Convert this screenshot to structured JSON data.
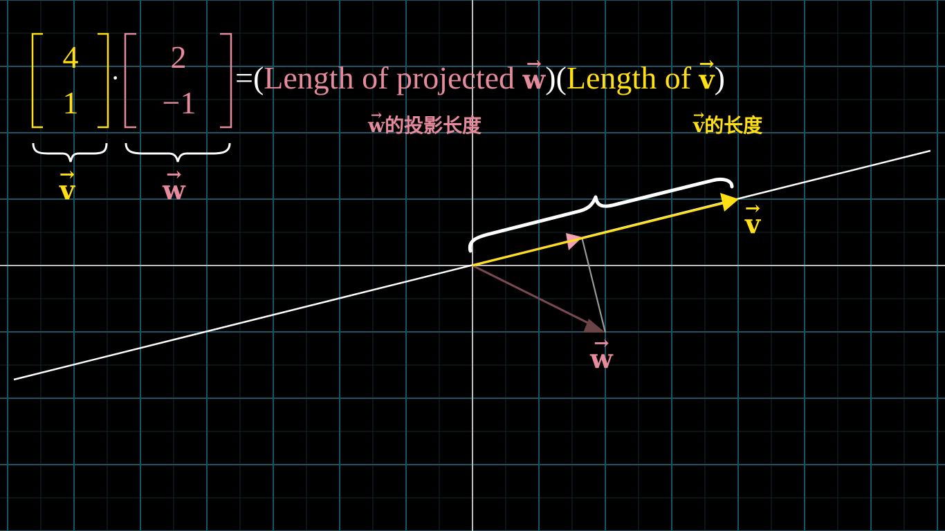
{
  "colors": {
    "v": "#ffe014",
    "w": "#e68a9e",
    "white": "#ffffff",
    "grid": "#1f4f5c",
    "axis": "#c8c8c8",
    "background": "#000000"
  },
  "equation": {
    "v_matrix": [
      "4",
      "1"
    ],
    "dot": "·",
    "w_matrix": [
      "2",
      "−1"
    ],
    "equals": "=",
    "open_paren": "(",
    "close_paren": ")",
    "projected_label": "Length of projected ",
    "length_label": "Length of ",
    "v_symbol": "v",
    "w_symbol": "w"
  },
  "captions": {
    "projected_length": "的投影长度",
    "v_length": "的长度",
    "w_symbol": "w",
    "v_symbol": "v"
  },
  "diagram": {
    "vector_v": [
      4,
      1
    ],
    "vector_w": [
      2,
      -1
    ],
    "v_label": "v",
    "w_label": "w",
    "brace_labels": {
      "v": "v",
      "w": "w"
    },
    "icons": {
      "brace": "curly-brace-icon",
      "arrow": "vector-arrow-icon"
    }
  }
}
